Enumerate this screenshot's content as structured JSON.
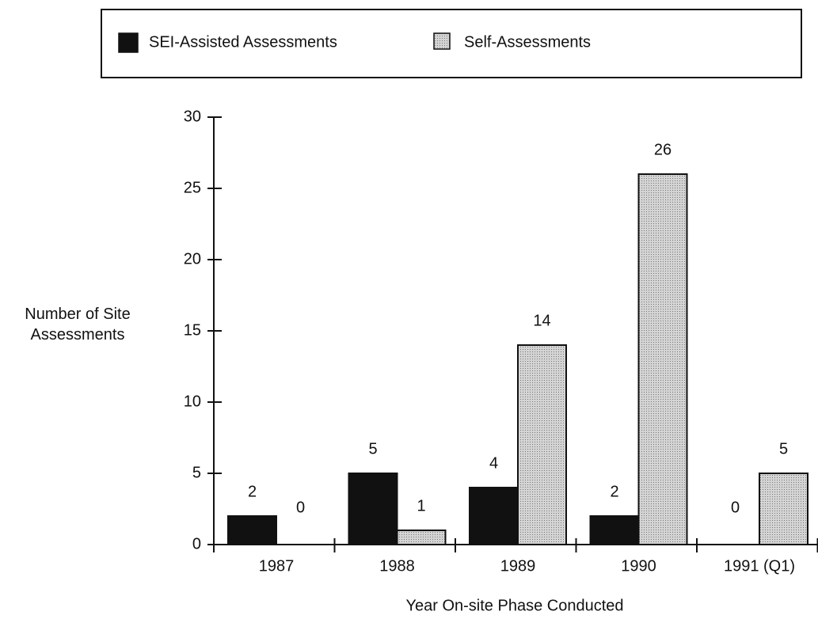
{
  "chart_data": {
    "type": "bar",
    "x_label": "Year On-site Phase Conducted",
    "y_label": "Number of Site Assessments",
    "categories": [
      "1987",
      "1988",
      "1989",
      "1990",
      "1991 (Q1)"
    ],
    "series": [
      {
        "name": "SEI-Assisted Assessments",
        "color": "#111111",
        "values": [
          2,
          5,
          4,
          2,
          0
        ]
      },
      {
        "name": "Self-Assessments",
        "color": "#cccccc",
        "values": [
          0,
          1,
          14,
          26,
          5
        ]
      }
    ],
    "ylim": [
      0,
      30
    ],
    "yticks": [
      0,
      5,
      10,
      15,
      20,
      25,
      30
    ],
    "legend": "top",
    "value_labels_shown": true
  }
}
